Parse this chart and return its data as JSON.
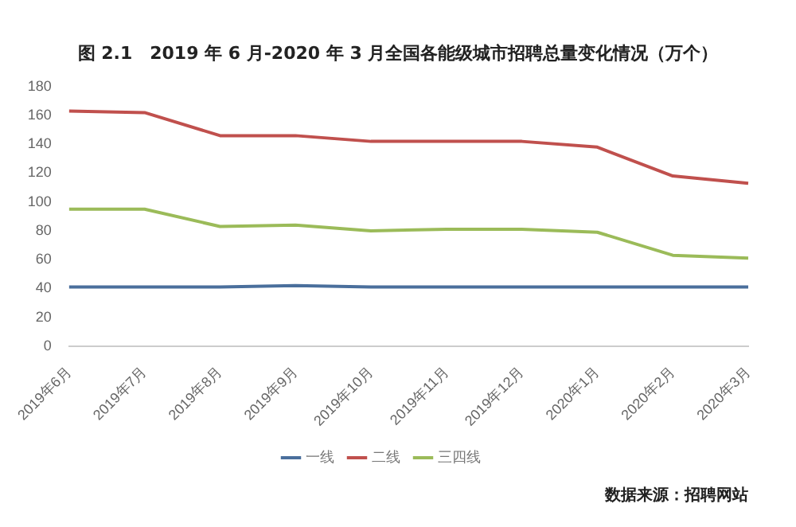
{
  "chart_data": {
    "type": "line",
    "title": "图 2.1　2019 年 6 月-2020 年 3 月全国各能级城市招聘总量变化情况（万个）",
    "categories": [
      "2019年6月",
      "2019年7月",
      "2019年8月",
      "2019年9月",
      "2019年10月",
      "2019年11月",
      "2019年12月",
      "2020年1月",
      "2020年2月",
      "2020年3月"
    ],
    "series": [
      {
        "name": "一线",
        "color": "#4a6f9c",
        "values": [
          41,
          41,
          41,
          42,
          41,
          41,
          41,
          41,
          41,
          41
        ]
      },
      {
        "name": "二线",
        "color": "#c0504d",
        "values": [
          163,
          162,
          146,
          146,
          142,
          142,
          142,
          138,
          118,
          113
        ]
      },
      {
        "name": "三四线",
        "color": "#9bbb59",
        "values": [
          95,
          95,
          83,
          84,
          80,
          81,
          81,
          79,
          63,
          61
        ]
      }
    ],
    "ylim": [
      0,
      180
    ],
    "yticks": [
      0,
      20,
      40,
      60,
      80,
      100,
      120,
      140,
      160,
      180
    ],
    "grid": false,
    "legend": "bottom",
    "marker": "none",
    "line_style": "solid",
    "annotations": [
      "数据来源：招聘网站"
    ]
  }
}
